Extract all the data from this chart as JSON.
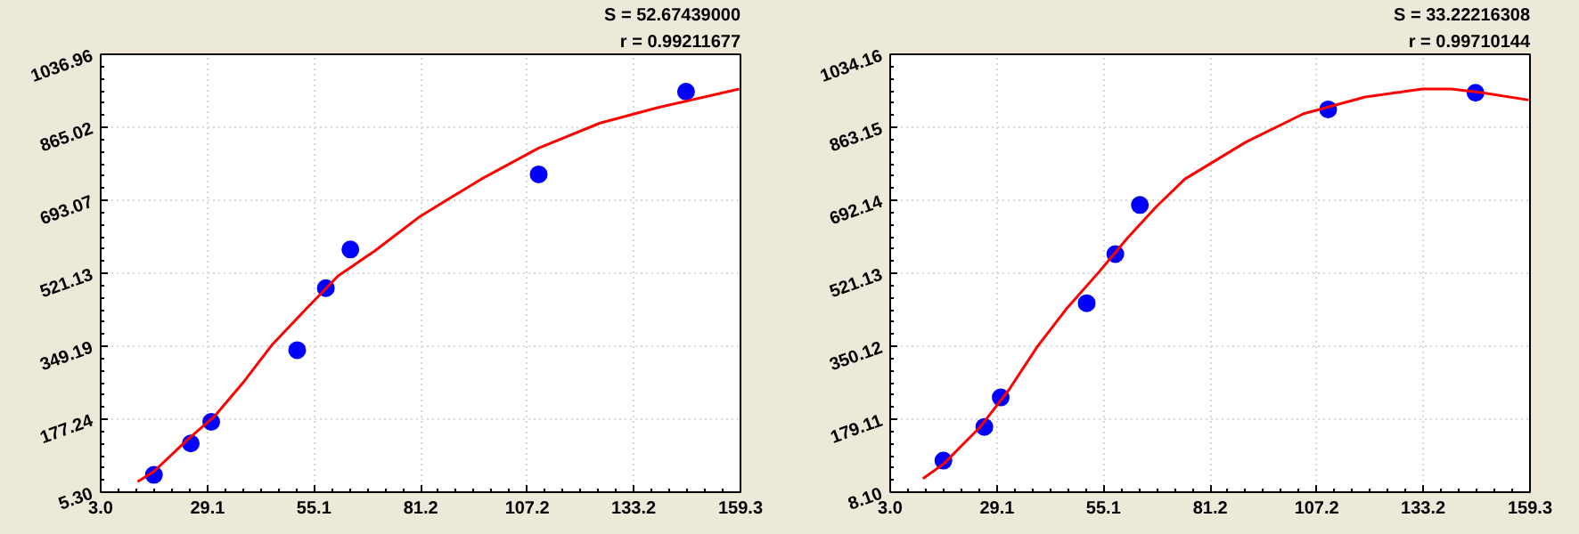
{
  "chart_data": [
    {
      "type": "scatter",
      "annotations": [
        "S = 52.67439000",
        "r = 0.99211677"
      ],
      "xlim": [
        3.0,
        159.3
      ],
      "xticks": [
        {
          "value": 3.0,
          "label": "3.0"
        },
        29.1,
        55.1,
        81.2,
        107.2,
        133.2,
        159.3
      ],
      "ylim": [
        5.3,
        1036.96
      ],
      "yticks": [
        {
          "value": 5.3,
          "label": "5.30"
        },
        177.24,
        349.19,
        521.13,
        693.07,
        865.02,
        1036.96
      ],
      "grid": true,
      "series": [
        {
          "marker": "circle",
          "color": "#0000ff",
          "x": [
            16,
            25,
            30,
            51,
            58,
            64,
            110,
            146
          ],
          "values": [
            46,
            120,
            171,
            340,
            486,
            577,
            754,
            949
          ]
        },
        {
          "type": "line",
          "color": "#ff0000",
          "x": [
            12,
            16,
            24,
            31,
            38,
            45,
            53,
            61,
            70,
            81,
            96,
            110,
            125,
            139,
            159
          ],
          "values": [
            30,
            54,
            127,
            186,
            266,
            354,
            435,
            515,
            574,
            655,
            743,
            816,
            875,
            911,
            955
          ]
        }
      ]
    },
    {
      "type": "scatter",
      "annotations": [
        "S = 33.22216308",
        "r = 0.99710144"
      ],
      "xlim": [
        3.0,
        159.3
      ],
      "xticks": [
        {
          "value": 3.0,
          "label": "3.0"
        },
        29.1,
        55.1,
        81.2,
        107.2,
        133.2,
        159.3
      ],
      "ylim": [
        8.1,
        1034.16
      ],
      "yticks": [
        {
          "value": 8.1,
          "label": "8.10"
        },
        179.11,
        350.12,
        521.13,
        692.14,
        863.15,
        1034.16
      ],
      "grid": true,
      "series": [
        {
          "marker": "circle",
          "color": "#0000ff",
          "x": [
            16,
            26,
            30,
            51,
            58,
            64,
            110,
            146
          ],
          "values": [
            82,
            161,
            230,
            451,
            566,
            681,
            905,
            944
          ]
        },
        {
          "type": "line",
          "color": "#ff0000",
          "x": [
            11,
            16,
            25,
            32,
            39,
            46,
            54,
            61,
            68,
            75,
            90,
            104,
            119,
            133,
            140,
            147,
            159
          ],
          "values": [
            40,
            74,
            161,
            248,
            350,
            437,
            524,
            604,
            677,
            742,
            829,
            895,
            934,
            953,
            953,
            945,
            927
          ]
        }
      ]
    }
  ]
}
